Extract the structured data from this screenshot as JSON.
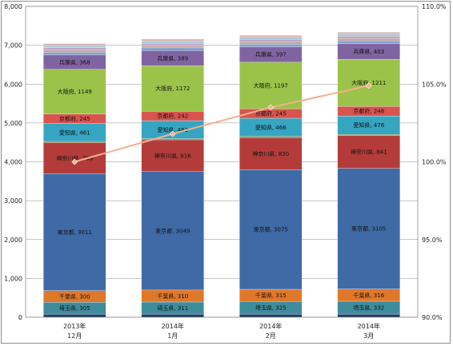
{
  "chart_data": {
    "type": "stacked-bar+line",
    "categories": [
      {
        "line1": "2013年",
        "line2": "12月"
      },
      {
        "line1": "2014年",
        "line2": "1月"
      },
      {
        "line1": "2014年",
        "line2": "2月"
      },
      {
        "line1": "2014年",
        "line2": "3月"
      }
    ],
    "y_left": {
      "min": 0,
      "max": 8000,
      "step": 1000,
      "ticks": [
        "0",
        "1,000",
        "2,000",
        "3,000",
        "4,000",
        "5,000",
        "6,000",
        "7,000",
        "8,000"
      ]
    },
    "y_right": {
      "min": 90,
      "max": 110,
      "step": 5,
      "ticks": [
        "90.0%",
        "95.0%",
        "100.0%",
        "105.0%",
        "110.0%"
      ]
    },
    "grid": true,
    "series": [
      {
        "name": "",
        "color": "#1f3b66",
        "values": [
          80,
          80,
          80,
          80
        ],
        "labeled": false
      },
      {
        "name": "埼玉県",
        "color": "#3e8c9c",
        "values": [
          305,
          311,
          325,
          332
        ],
        "labeled": true
      },
      {
        "name": "千葉県",
        "color": "#e0782a",
        "values": [
          300,
          310,
          315,
          316
        ],
        "labeled": true
      },
      {
        "name": "東京都",
        "color": "#3f6aa6",
        "values": [
          3011,
          3049,
          3075,
          3105
        ],
        "labeled": true
      },
      {
        "name": "神奈川県",
        "color": "#b33c3a",
        "values": [
          799,
          816,
          830,
          841
        ],
        "labeled": true
      },
      {
        "name": "",
        "color": "#7a8f3c",
        "values": [
          30,
          30,
          30,
          30
        ],
        "labeled": false
      },
      {
        "name": "愛知県",
        "color": "#35a5c2",
        "values": [
          461,
          463,
          466,
          476
        ],
        "labeled": true
      },
      {
        "name": "京都府",
        "color": "#d9534f",
        "values": [
          245,
          242,
          245,
          248
        ],
        "labeled": true
      },
      {
        "name": "大阪府",
        "color": "#9bc34a",
        "values": [
          1149,
          1172,
          1197,
          1211
        ],
        "labeled": true
      },
      {
        "name": "兵庫県",
        "color": "#8064a2",
        "values": [
          368,
          389,
          397,
          403
        ],
        "labeled": true
      },
      {
        "name": "",
        "color": "#7e9fcb",
        "values": [
          70,
          70,
          70,
          70
        ],
        "labeled": false
      },
      {
        "name": "",
        "color": "#c9a0a0",
        "values": [
          60,
          60,
          60,
          60
        ],
        "labeled": false
      },
      {
        "name": "",
        "color": "#b8a8c9",
        "values": [
          60,
          60,
          60,
          60
        ],
        "labeled": false
      },
      {
        "name": "",
        "color": "#a8c8d8",
        "values": [
          55,
          55,
          55,
          55
        ],
        "labeled": false
      },
      {
        "name": "",
        "color": "#d8b0b0",
        "values": [
          50,
          50,
          50,
          50
        ],
        "labeled": false
      }
    ],
    "line": {
      "name": "",
      "color": "#f5b08c",
      "axis": "right",
      "values": [
        100.0,
        101.8,
        103.5,
        104.9
      ]
    }
  }
}
